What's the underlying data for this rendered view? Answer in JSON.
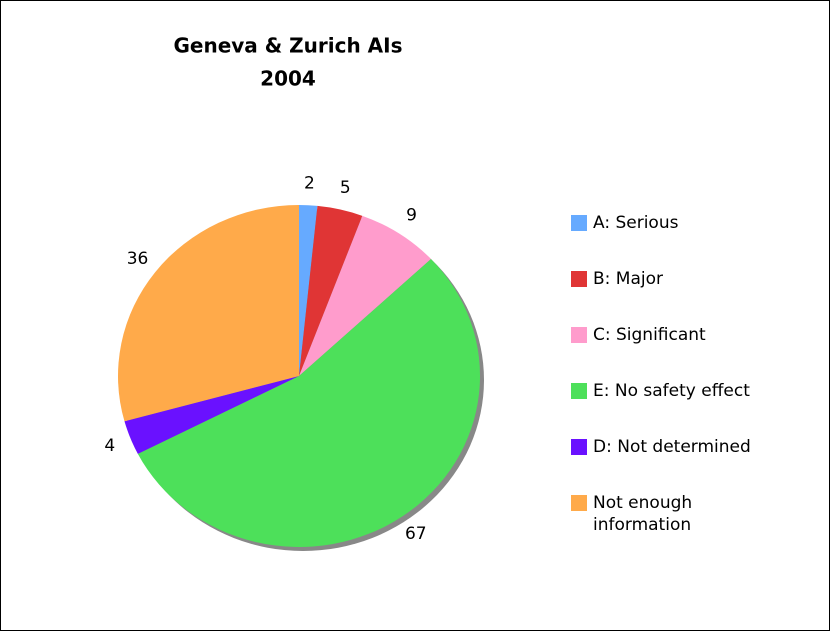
{
  "chart_data": {
    "type": "pie",
    "title": "Geneva & Zurich AIs",
    "subtitle": "2004",
    "categories": [
      "A: Serious",
      "B: Major",
      "C: Significant",
      "E: No safety effect",
      "D: Not determined",
      "Not enough information"
    ],
    "values": [
      2,
      5,
      9,
      67,
      4,
      36
    ],
    "colors": [
      "#66aaff",
      "#e03535",
      "#ff9ccc",
      "#4de05a",
      "#6a11ff",
      "#ffaa4a"
    ],
    "legend": "right"
  }
}
